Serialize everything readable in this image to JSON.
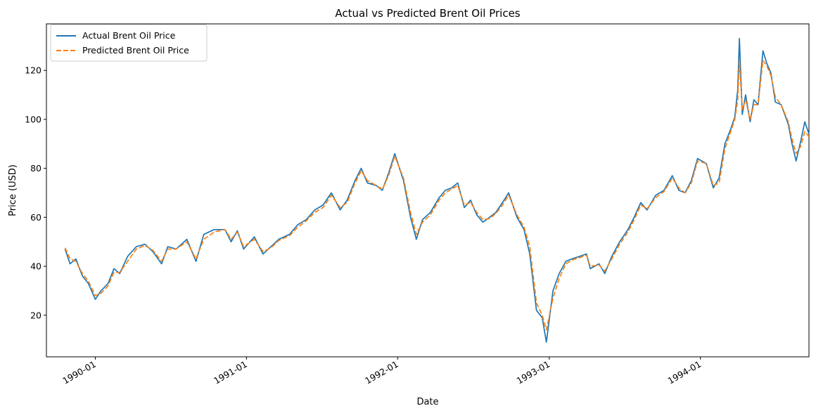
{
  "chart_data": {
    "type": "line",
    "title": "Actual vs Predicted Brent Oil Prices",
    "xlabel": "Date",
    "ylabel": "Price (USD)",
    "x_ticks": [
      "1990-01",
      "1991-01",
      "1992-01",
      "1993-01",
      "1994-01"
    ],
    "y_ticks": [
      20,
      40,
      60,
      80,
      100,
      120
    ],
    "ylim": [
      3,
      139
    ],
    "xlim": [
      "1989-09-05",
      "1994-09-20"
    ],
    "grid": false,
    "legend_position": "top-left",
    "series": [
      {
        "name": "Actual Brent Oil Price",
        "color": "#1f77b4",
        "style": "solid",
        "points": [
          [
            "1989-10-20",
            47
          ],
          [
            "1989-11-01",
            41
          ],
          [
            "1989-11-15",
            43
          ],
          [
            "1989-12-01",
            36
          ],
          [
            "1989-12-15",
            33
          ],
          [
            "1990-01-01",
            26.5
          ],
          [
            "1990-01-15",
            30
          ],
          [
            "1990-02-01",
            33
          ],
          [
            "1990-02-15",
            39
          ],
          [
            "1990-03-01",
            37
          ],
          [
            "1990-03-20",
            44
          ],
          [
            "1990-04-10",
            48
          ],
          [
            "1990-05-01",
            49
          ],
          [
            "1990-05-20",
            46
          ],
          [
            "1990-06-10",
            41
          ],
          [
            "1990-06-25",
            48
          ],
          [
            "1990-07-15",
            47
          ],
          [
            "1990-08-10",
            51
          ],
          [
            "1990-09-01",
            42
          ],
          [
            "1990-09-20",
            53
          ],
          [
            "1990-10-15",
            55
          ],
          [
            "1990-11-10",
            55
          ],
          [
            "1990-11-25",
            50
          ],
          [
            "1990-12-10",
            54.5
          ],
          [
            "1990-12-25",
            47
          ],
          [
            "1991-01-20",
            52
          ],
          [
            "1991-02-10",
            45
          ],
          [
            "1991-03-01",
            48
          ],
          [
            "1991-03-20",
            51
          ],
          [
            "1991-04-15",
            53
          ],
          [
            "1991-05-05",
            57
          ],
          [
            "1991-05-25",
            59
          ],
          [
            "1991-06-15",
            63
          ],
          [
            "1991-07-05",
            65
          ],
          [
            "1991-07-25",
            70
          ],
          [
            "1991-08-15",
            63
          ],
          [
            "1991-09-01",
            67
          ],
          [
            "1991-09-20",
            75
          ],
          [
            "1991-10-05",
            80
          ],
          [
            "1991-10-20",
            74
          ],
          [
            "1991-11-10",
            73
          ],
          [
            "1991-11-25",
            71
          ],
          [
            "1991-12-10",
            78
          ],
          [
            "1991-12-25",
            86
          ],
          [
            "1992-01-15",
            75
          ],
          [
            "1992-02-01",
            60
          ],
          [
            "1992-02-15",
            51
          ],
          [
            "1992-03-01",
            59
          ],
          [
            "1992-03-20",
            62
          ],
          [
            "1992-04-10",
            68
          ],
          [
            "1992-04-25",
            71
          ],
          [
            "1992-05-10",
            72
          ],
          [
            "1992-05-25",
            74
          ],
          [
            "1992-06-10",
            64
          ],
          [
            "1992-06-25",
            67
          ],
          [
            "1992-07-10",
            61
          ],
          [
            "1992-07-25",
            58
          ],
          [
            "1992-08-10",
            60
          ],
          [
            "1992-08-25",
            62
          ],
          [
            "1992-09-10",
            66
          ],
          [
            "1992-09-25",
            70
          ],
          [
            "1992-10-15",
            60
          ],
          [
            "1992-11-01",
            55
          ],
          [
            "1992-11-15",
            45
          ],
          [
            "1992-12-01",
            22
          ],
          [
            "1992-12-15",
            19
          ],
          [
            "1992-12-25",
            9
          ],
          [
            "1993-01-10",
            30
          ],
          [
            "1993-01-25",
            37
          ],
          [
            "1993-02-10",
            42
          ],
          [
            "1993-02-25",
            43
          ],
          [
            "1993-03-15",
            44
          ],
          [
            "1993-04-01",
            45
          ],
          [
            "1993-04-10",
            39
          ],
          [
            "1993-05-01",
            41
          ],
          [
            "1993-05-15",
            37
          ],
          [
            "1993-06-01",
            44
          ],
          [
            "1993-06-20",
            50
          ],
          [
            "1993-07-10",
            55
          ],
          [
            "1993-07-25",
            60
          ],
          [
            "1993-08-10",
            66
          ],
          [
            "1993-08-25",
            63
          ],
          [
            "1993-09-15",
            69
          ],
          [
            "1993-10-05",
            71
          ],
          [
            "1993-10-25",
            77
          ],
          [
            "1993-11-10",
            71
          ],
          [
            "1993-11-25",
            70
          ],
          [
            "1993-12-10",
            75
          ],
          [
            "1993-12-25",
            84
          ],
          [
            "1994-01-15",
            82
          ],
          [
            "1994-02-01",
            72
          ],
          [
            "1994-02-15",
            76
          ],
          [
            "1994-03-01",
            90
          ],
          [
            "1994-03-15",
            96
          ],
          [
            "1994-03-25",
            101
          ],
          [
            "1994-04-01",
            112
          ],
          [
            "1994-04-05",
            133
          ],
          [
            "1994-04-12",
            102
          ],
          [
            "1994-04-20",
            110
          ],
          [
            "1994-05-01",
            99
          ],
          [
            "1994-05-10",
            108
          ],
          [
            "1994-05-20",
            106
          ],
          [
            "1994-06-01",
            128
          ],
          [
            "1994-06-10",
            123
          ],
          [
            "1994-06-20",
            119
          ],
          [
            "1994-07-01",
            107
          ],
          [
            "1994-07-15",
            106
          ],
          [
            "1994-08-01",
            98
          ],
          [
            "1994-08-10",
            90
          ],
          [
            "1994-08-20",
            83
          ],
          [
            "1994-08-31",
            91
          ],
          [
            "1994-09-10",
            99
          ],
          [
            "1994-09-20",
            94
          ]
        ]
      },
      {
        "name": "Predicted Brent Oil Price",
        "color": "#ff7f0e",
        "style": "dashed",
        "points": [
          [
            "1989-10-20",
            47.5
          ],
          [
            "1989-11-01",
            43
          ],
          [
            "1989-11-15",
            42
          ],
          [
            "1989-12-01",
            37
          ],
          [
            "1989-12-15",
            34
          ],
          [
            "1990-01-01",
            28
          ],
          [
            "1990-01-15",
            29
          ],
          [
            "1990-02-01",
            32
          ],
          [
            "1990-02-15",
            37.5
          ],
          [
            "1990-03-01",
            37.5
          ],
          [
            "1990-03-20",
            42
          ],
          [
            "1990-04-10",
            47
          ],
          [
            "1990-05-01",
            48.5
          ],
          [
            "1990-05-20",
            46.5
          ],
          [
            "1990-06-10",
            42
          ],
          [
            "1990-06-25",
            47
          ],
          [
            "1990-07-15",
            47
          ],
          [
            "1990-08-10",
            50
          ],
          [
            "1990-09-01",
            43
          ],
          [
            "1990-09-20",
            51
          ],
          [
            "1990-10-15",
            54
          ],
          [
            "1990-11-10",
            55
          ],
          [
            "1990-11-25",
            51
          ],
          [
            "1990-12-10",
            54
          ],
          [
            "1990-12-25",
            48
          ],
          [
            "1991-01-20",
            51
          ],
          [
            "1991-02-10",
            46
          ],
          [
            "1991-03-01",
            47.5
          ],
          [
            "1991-03-20",
            50.5
          ],
          [
            "1991-04-15",
            52.5
          ],
          [
            "1991-05-05",
            56
          ],
          [
            "1991-05-25",
            58.5
          ],
          [
            "1991-06-15",
            62
          ],
          [
            "1991-07-05",
            64
          ],
          [
            "1991-07-25",
            69
          ],
          [
            "1991-08-15",
            64
          ],
          [
            "1991-09-01",
            66
          ],
          [
            "1991-09-20",
            74
          ],
          [
            "1991-10-05",
            79
          ],
          [
            "1991-10-20",
            75
          ],
          [
            "1991-11-10",
            73
          ],
          [
            "1991-11-25",
            71.5
          ],
          [
            "1991-12-10",
            77
          ],
          [
            "1991-12-25",
            85
          ],
          [
            "1992-01-15",
            76
          ],
          [
            "1992-02-01",
            62
          ],
          [
            "1992-02-15",
            53
          ],
          [
            "1992-03-01",
            58
          ],
          [
            "1992-03-20",
            61
          ],
          [
            "1992-04-10",
            67
          ],
          [
            "1992-04-25",
            70
          ],
          [
            "1992-05-10",
            71.5
          ],
          [
            "1992-05-25",
            73
          ],
          [
            "1992-06-10",
            65
          ],
          [
            "1992-06-25",
            66
          ],
          [
            "1992-07-10",
            62
          ],
          [
            "1992-07-25",
            59
          ],
          [
            "1992-08-10",
            59.5
          ],
          [
            "1992-08-25",
            61.5
          ],
          [
            "1992-09-10",
            65
          ],
          [
            "1992-09-25",
            69
          ],
          [
            "1992-10-15",
            61
          ],
          [
            "1992-11-01",
            56
          ],
          [
            "1992-11-15",
            48
          ],
          [
            "1992-12-01",
            25
          ],
          [
            "1992-12-15",
            20
          ],
          [
            "1992-12-25",
            14
          ],
          [
            "1993-01-10",
            27
          ],
          [
            "1993-01-25",
            35
          ],
          [
            "1993-02-10",
            41
          ],
          [
            "1993-02-25",
            42.5
          ],
          [
            "1993-03-15",
            43.5
          ],
          [
            "1993-04-01",
            44.5
          ],
          [
            "1993-04-10",
            40
          ],
          [
            "1993-05-01",
            40.5
          ],
          [
            "1993-05-15",
            38
          ],
          [
            "1993-06-01",
            43
          ],
          [
            "1993-06-20",
            49
          ],
          [
            "1993-07-10",
            54
          ],
          [
            "1993-07-25",
            59
          ],
          [
            "1993-08-10",
            65
          ],
          [
            "1993-08-25",
            63.5
          ],
          [
            "1993-09-15",
            68
          ],
          [
            "1993-10-05",
            70.5
          ],
          [
            "1993-10-25",
            76
          ],
          [
            "1993-11-10",
            72
          ],
          [
            "1993-11-25",
            70
          ],
          [
            "1993-12-10",
            74
          ],
          [
            "1993-12-25",
            83
          ],
          [
            "1994-01-15",
            82
          ],
          [
            "1994-02-01",
            73
          ],
          [
            "1994-02-15",
            74
          ],
          [
            "1994-03-01",
            88
          ],
          [
            "1994-03-15",
            95
          ],
          [
            "1994-03-25",
            100
          ],
          [
            "1994-04-01",
            108
          ],
          [
            "1994-04-05",
            124
          ],
          [
            "1994-04-12",
            104
          ],
          [
            "1994-04-20",
            108
          ],
          [
            "1994-05-01",
            100
          ],
          [
            "1994-05-10",
            106
          ],
          [
            "1994-05-20",
            106
          ],
          [
            "1994-06-01",
            124
          ],
          [
            "1994-06-10",
            122
          ],
          [
            "1994-06-20",
            118
          ],
          [
            "1994-07-01",
            109
          ],
          [
            "1994-07-15",
            106
          ],
          [
            "1994-08-01",
            99
          ],
          [
            "1994-08-10",
            92
          ],
          [
            "1994-08-20",
            86
          ],
          [
            "1994-08-31",
            89
          ],
          [
            "1994-09-10",
            95
          ],
          [
            "1994-09-20",
            93
          ]
        ]
      }
    ]
  }
}
